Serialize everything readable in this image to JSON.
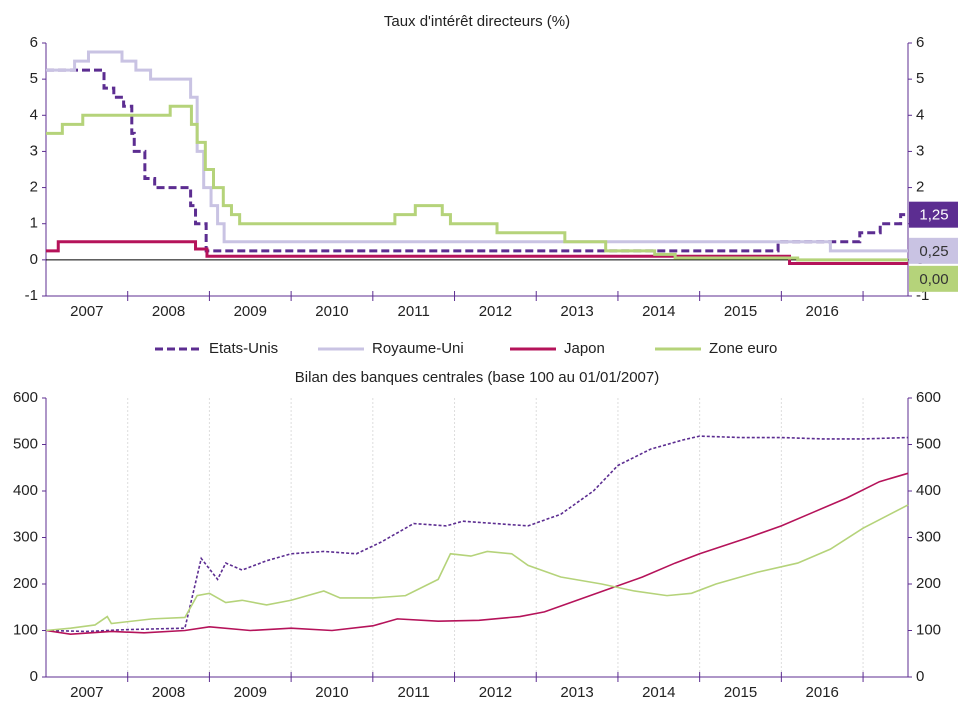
{
  "chart_data": [
    {
      "type": "line",
      "step": true,
      "title": "Taux d'intérêt directeurs (%)",
      "xlim": [
        2007,
        2017.55
      ],
      "xticks": [
        {
          "value": 2007.5,
          "label": "2007"
        },
        {
          "value": 2008.5,
          "label": "2008"
        },
        {
          "value": 2009.5,
          "label": "2009"
        },
        {
          "value": 2010.5,
          "label": "2010"
        },
        {
          "value": 2011.5,
          "label": "2011"
        },
        {
          "value": 2012.5,
          "label": "2012"
        },
        {
          "value": 2013.5,
          "label": "2013"
        },
        {
          "value": 2014.5,
          "label": "2014"
        },
        {
          "value": 2015.5,
          "label": "2015"
        },
        {
          "value": 2016.5,
          "label": "2016"
        }
      ],
      "xgrid": [
        2008,
        2009,
        2010,
        2011,
        2012,
        2013,
        2014,
        2015,
        2016,
        2017
      ],
      "grid": false,
      "ylim": [
        -1,
        6
      ],
      "yticks": [
        -1,
        0,
        1,
        2,
        3,
        4,
        5,
        6
      ],
      "series": [
        {
          "name": "Etats-Unis",
          "color": "#5c2d91",
          "dashed": true,
          "x": [
            2007,
            2007.71,
            2007.83,
            2007.95,
            2008.05,
            2008.08,
            2008.21,
            2008.33,
            2008.77,
            2008.83,
            2008.96,
            2015.96,
            2016.96,
            2017.21,
            2017.46,
            2017.55
          ],
          "values": [
            5.25,
            4.75,
            4.5,
            4.25,
            3.5,
            3.0,
            2.25,
            2.0,
            1.5,
            1.0,
            0.25,
            0.5,
            0.75,
            1.0,
            1.25,
            1.25
          ]
        },
        {
          "name": "Royaume-Uni",
          "color": "#c9c3e3",
          "dashed": false,
          "x": [
            2007,
            2007.35,
            2007.52,
            2007.93,
            2008.1,
            2008.28,
            2008.77,
            2008.85,
            2008.93,
            2009.02,
            2009.1,
            2009.18,
            2016.6,
            2017.55
          ],
          "values": [
            5.25,
            5.5,
            5.75,
            5.5,
            5.25,
            5.0,
            4.5,
            3.0,
            2.0,
            1.5,
            1.0,
            0.5,
            0.25,
            0.25
          ]
        },
        {
          "name": "Japon",
          "color": "#b5135a",
          "dashed": false,
          "x": [
            2007,
            2007.15,
            2008.83,
            2008.97,
            2016.1,
            2017.55
          ],
          "values": [
            0.25,
            0.5,
            0.3,
            0.1,
            -0.1,
            -0.1
          ]
        },
        {
          "name": "Zone euro",
          "color": "#b5d37a",
          "dashed": false,
          "x": [
            2007,
            2007.2,
            2007.45,
            2008.52,
            2008.78,
            2008.85,
            2008.95,
            2009.05,
            2009.17,
            2009.27,
            2009.37,
            2011.27,
            2011.52,
            2011.85,
            2011.95,
            2012.52,
            2013.35,
            2013.85,
            2014.45,
            2014.7,
            2016.2,
            2017.55
          ],
          "values": [
            3.5,
            3.75,
            4.0,
            4.25,
            3.75,
            3.25,
            2.5,
            2.0,
            1.5,
            1.25,
            1.0,
            1.25,
            1.5,
            1.25,
            1.0,
            0.75,
            0.5,
            0.25,
            0.15,
            0.05,
            0.0,
            0.0
          ]
        }
      ],
      "end_labels": [
        {
          "value": 1.25,
          "label": "1,25",
          "color": "#5c2d91",
          "text_color": "#ffffff"
        },
        {
          "value": 0.25,
          "label": "0,25",
          "color": "#c9c3e3",
          "text_color": "#333333"
        },
        {
          "value": 0,
          "label": "0,00",
          "color": "#b5d37a",
          "text_color": "#333333"
        }
      ]
    },
    {
      "type": "line",
      "step": false,
      "title": "Bilan des banques centrales (base 100 au 01/01/2007)",
      "xlim": [
        2007,
        2017.55
      ],
      "xticks": [
        {
          "value": 2007.5,
          "label": "2007"
        },
        {
          "value": 2008.5,
          "label": "2008"
        },
        {
          "value": 2009.5,
          "label": "2009"
        },
        {
          "value": 2010.5,
          "label": "2010"
        },
        {
          "value": 2011.5,
          "label": "2011"
        },
        {
          "value": 2012.5,
          "label": "2012"
        },
        {
          "value": 2013.5,
          "label": "2013"
        },
        {
          "value": 2014.5,
          "label": "2014"
        },
        {
          "value": 2015.5,
          "label": "2015"
        },
        {
          "value": 2016.5,
          "label": "2016"
        }
      ],
      "xgrid": [
        2008,
        2009,
        2010,
        2011,
        2012,
        2013,
        2014,
        2015,
        2016,
        2017
      ],
      "grid": true,
      "ylim": [
        0,
        600
      ],
      "yticks": [
        0,
        100,
        200,
        300,
        400,
        500,
        600
      ],
      "series": [
        {
          "name": "Etats-Unis",
          "color": "#5c2d91",
          "dashed": true,
          "x": [
            2007,
            2007.5,
            2008,
            2008.7,
            2008.9,
            2009.1,
            2009.2,
            2009.4,
            2009.7,
            2010.0,
            2010.4,
            2010.8,
            2011.1,
            2011.5,
            2011.9,
            2012.1,
            2012.5,
            2012.9,
            2013.3,
            2013.7,
            2014.0,
            2014.4,
            2014.8,
            2015.0,
            2015.5,
            2016.0,
            2016.5,
            2017.0,
            2017.55
          ],
          "values": [
            100,
            98,
            102,
            105,
            255,
            210,
            245,
            230,
            250,
            265,
            270,
            265,
            290,
            330,
            325,
            335,
            330,
            325,
            350,
            400,
            455,
            490,
            510,
            518,
            515,
            515,
            512,
            512,
            515
          ]
        },
        {
          "name": "Japon",
          "color": "#b5135a",
          "dashed": false,
          "x": [
            2007,
            2007.3,
            2007.8,
            2008.2,
            2008.7,
            2009.0,
            2009.5,
            2010.0,
            2010.5,
            2011.0,
            2011.3,
            2011.8,
            2012.3,
            2012.8,
            2013.1,
            2013.5,
            2013.9,
            2014.3,
            2014.7,
            2015.0,
            2015.6,
            2016.0,
            2016.4,
            2016.8,
            2017.2,
            2017.55
          ],
          "values": [
            100,
            92,
            98,
            95,
            100,
            108,
            100,
            105,
            100,
            110,
            125,
            120,
            122,
            130,
            140,
            165,
            190,
            215,
            245,
            265,
            300,
            325,
            355,
            385,
            420,
            438
          ]
        },
        {
          "name": "Zone euro",
          "color": "#b5d37a",
          "dashed": false,
          "x": [
            2007,
            2007.3,
            2007.6,
            2007.75,
            2007.8,
            2008.3,
            2008.7,
            2008.85,
            2009.0,
            2009.2,
            2009.4,
            2009.7,
            2010.0,
            2010.4,
            2010.6,
            2011.0,
            2011.4,
            2011.8,
            2011.95,
            2012.2,
            2012.4,
            2012.7,
            2012.9,
            2013.3,
            2013.8,
            2014.2,
            2014.6,
            2014.9,
            2015.2,
            2015.7,
            2016.2,
            2016.6,
            2017.0,
            2017.55
          ],
          "values": [
            100,
            105,
            112,
            130,
            115,
            125,
            128,
            175,
            180,
            160,
            165,
            155,
            165,
            185,
            170,
            170,
            175,
            210,
            265,
            260,
            270,
            265,
            240,
            215,
            200,
            185,
            175,
            180,
            200,
            225,
            245,
            275,
            320,
            370
          ]
        }
      ]
    }
  ]
}
